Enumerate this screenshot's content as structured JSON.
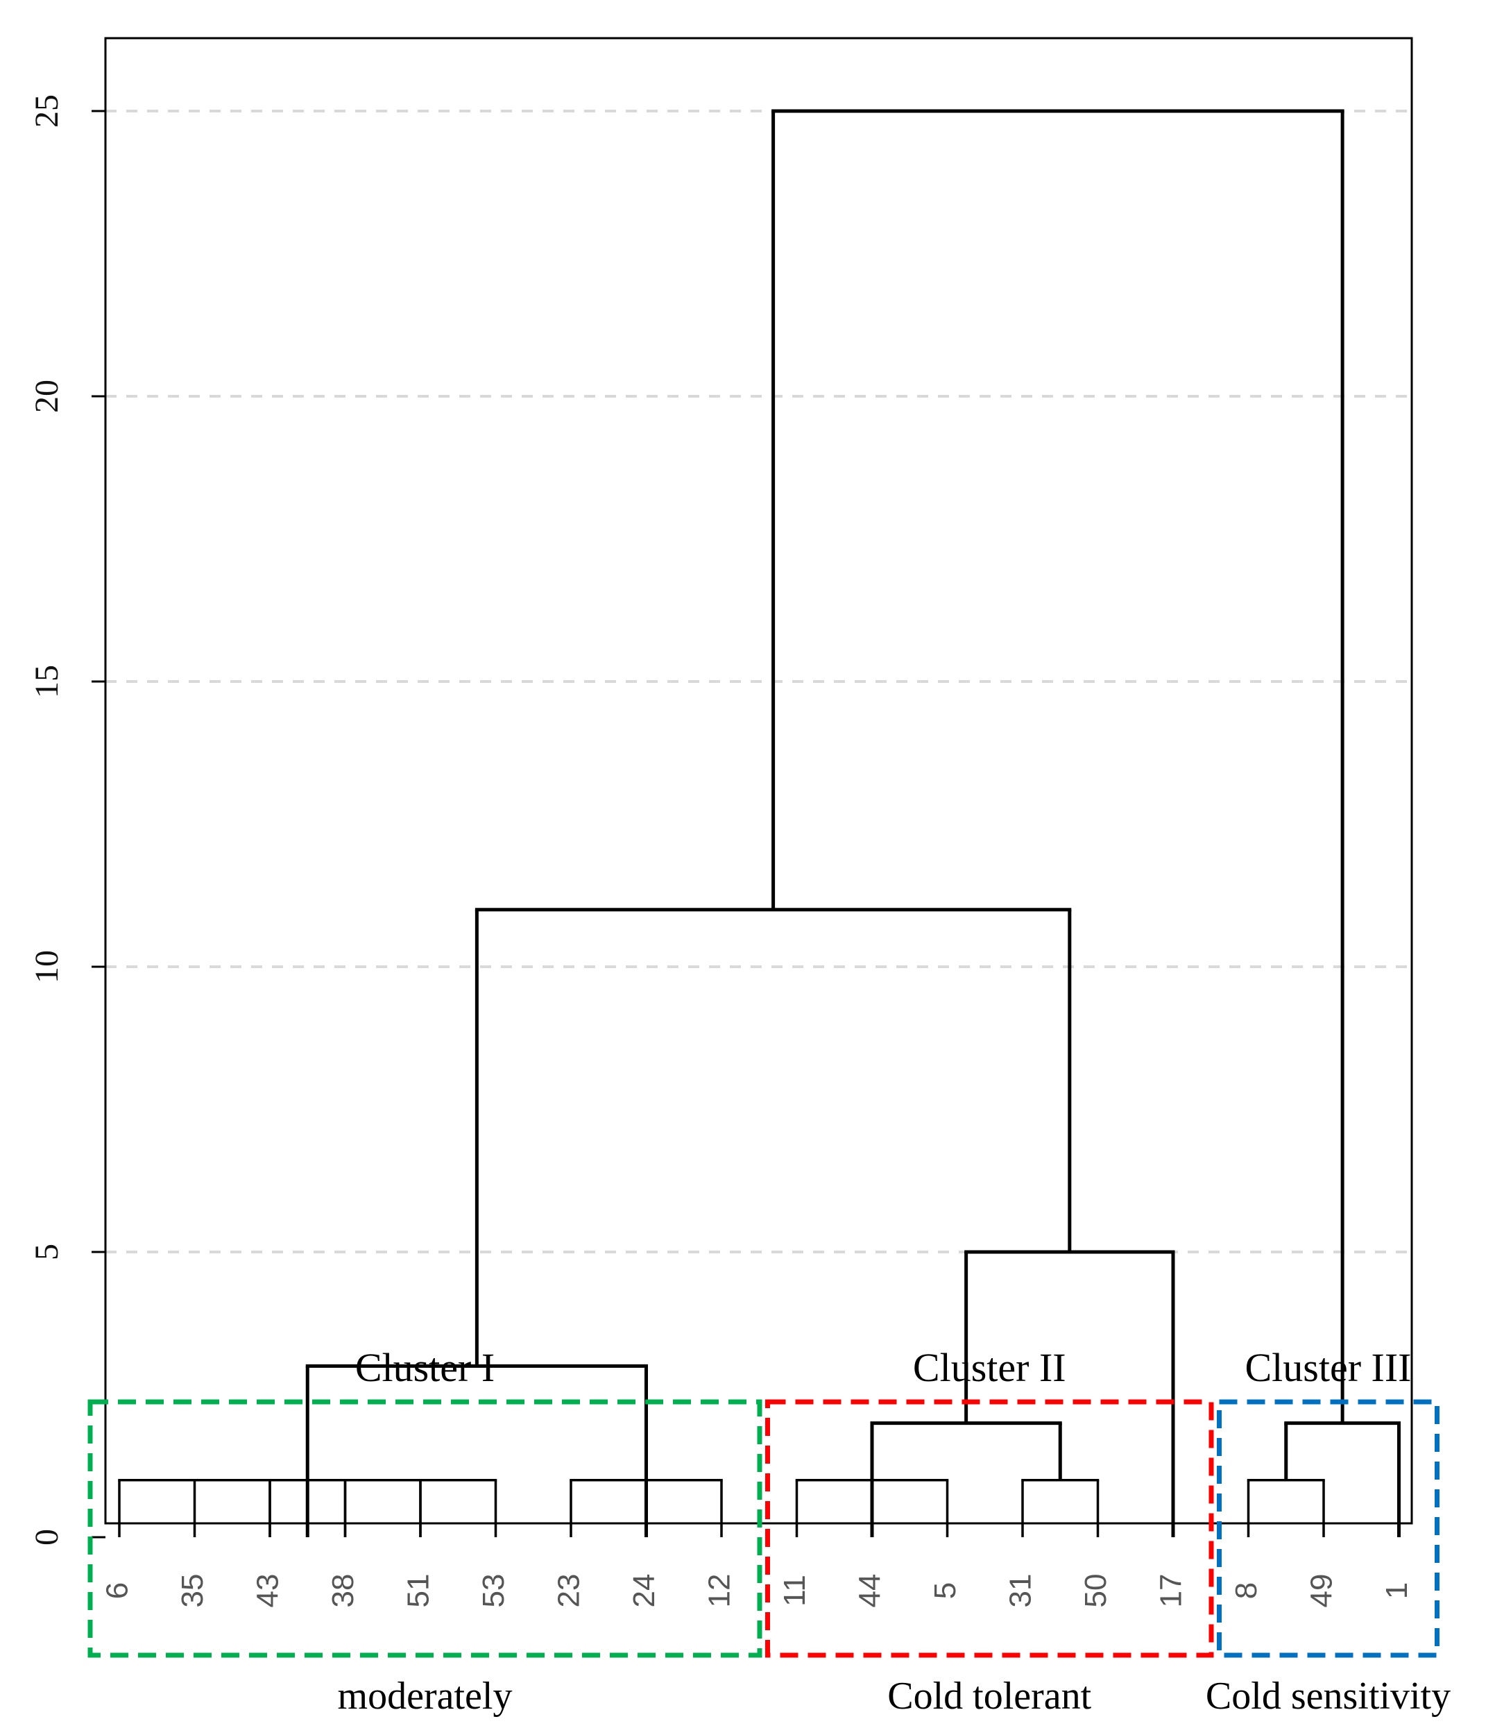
{
  "chart_data": {
    "type": "dendrogram",
    "ylim": [
      0,
      26.3
    ],
    "yticks": [
      "0",
      "5",
      "10",
      "15",
      "20",
      "25"
    ],
    "grid": "horizontal dashed at y ticks",
    "leaves": [
      "6",
      "35",
      "43",
      "38",
      "51",
      "53",
      "23",
      "24",
      "12",
      "11",
      "44",
      "5",
      "31",
      "50",
      "17",
      "8",
      "49",
      "1"
    ],
    "merges": [
      {
        "left": [
          "6"
        ],
        "right": [
          "35"
        ],
        "height": 1
      },
      {
        "left": [
          "6",
          "35"
        ],
        "right": [
          "43"
        ],
        "height": 1
      },
      {
        "left": [
          "43"
        ],
        "right": [
          "38"
        ],
        "height": 1
      },
      {
        "left": [
          "38"
        ],
        "right": [
          "51"
        ],
        "height": 1
      },
      {
        "left": [
          "51"
        ],
        "right": [
          "53"
        ],
        "height": 1
      },
      {
        "left": [
          "23"
        ],
        "right": [
          "24"
        ],
        "height": 1
      },
      {
        "left": [
          "24"
        ],
        "right": [
          "12"
        ],
        "height": 1
      },
      {
        "left": [
          "6",
          "35",
          "43",
          "38",
          "51",
          "53"
        ],
        "right": [
          "23",
          "24",
          "12"
        ],
        "height": 3
      },
      {
        "left": [
          "11"
        ],
        "right": [
          "44"
        ],
        "height": 1
      },
      {
        "left": [
          "44"
        ],
        "right": [
          "5"
        ],
        "height": 1
      },
      {
        "left": [
          "31"
        ],
        "right": [
          "50"
        ],
        "height": 1
      },
      {
        "left": [
          "11",
          "44",
          "5"
        ],
        "right": [
          "31",
          "50"
        ],
        "height": 2
      },
      {
        "left": [
          "11",
          "44",
          "5",
          "31",
          "50"
        ],
        "right": [
          "17"
        ],
        "height": 5
      },
      {
        "left": [
          "Cluster I"
        ],
        "right": [
          "Cluster II"
        ],
        "height": 11
      },
      {
        "left": [
          "8"
        ],
        "right": [
          "49"
        ],
        "height": 1
      },
      {
        "left": [
          "8",
          "49"
        ],
        "right": [
          "1"
        ],
        "height": 2
      },
      {
        "left": [
          "Cluster I",
          "Cluster II"
        ],
        "right": [
          "Cluster III"
        ],
        "height": 25
      }
    ],
    "clusters": [
      {
        "name": "Cluster I",
        "group": "moderately",
        "color": "#00b050",
        "members": [
          "6",
          "35",
          "43",
          "38",
          "51",
          "53",
          "23",
          "24",
          "12"
        ]
      },
      {
        "name": "Cluster II",
        "group": "Cold tolerant",
        "color": "#ff0000",
        "members": [
          "11",
          "44",
          "5",
          "31",
          "50",
          "17"
        ]
      },
      {
        "name": "Cluster III",
        "group": "Cold sensitivity",
        "color": "#0070c0",
        "members": [
          "8",
          "49",
          "1"
        ]
      }
    ]
  }
}
